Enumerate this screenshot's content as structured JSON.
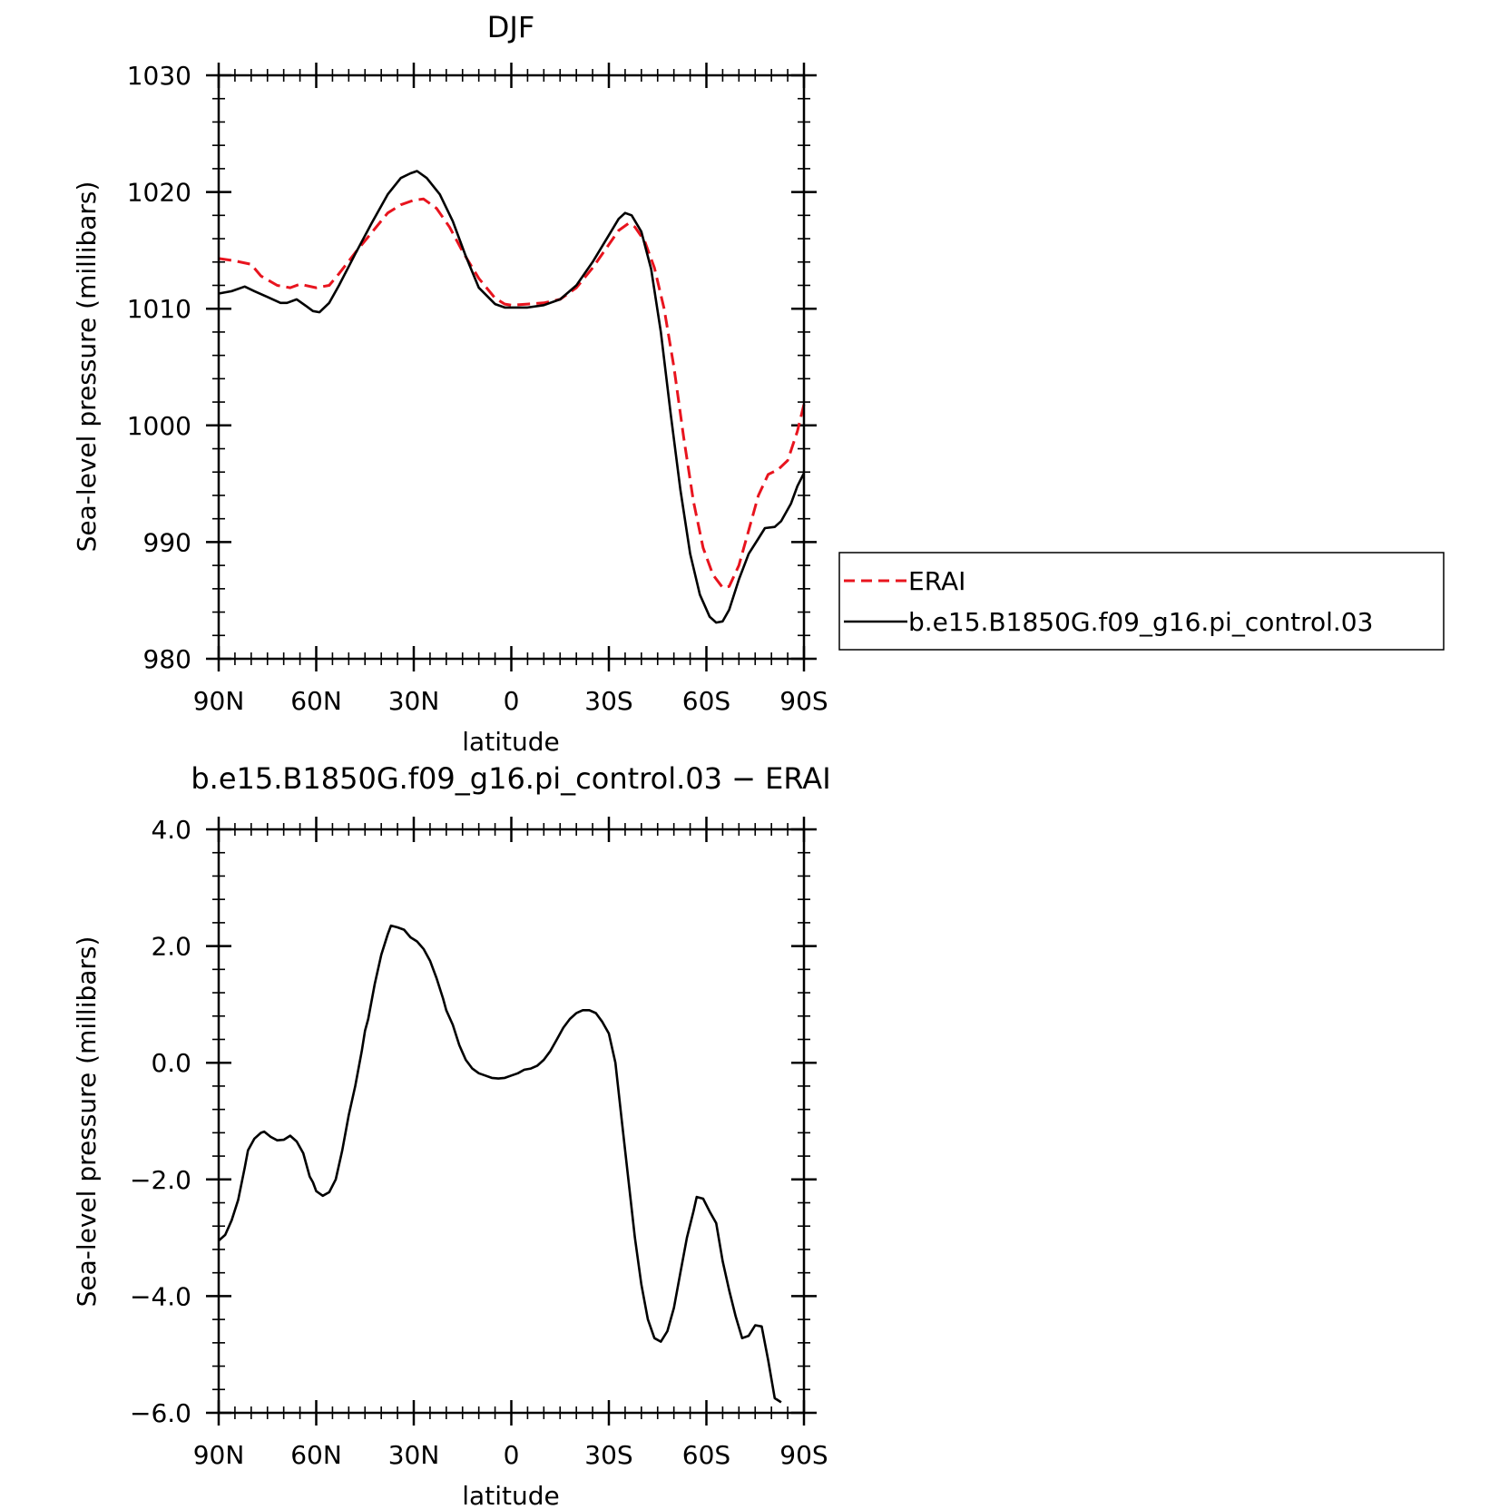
{
  "chart_data": [
    {
      "type": "line",
      "title": "DJF",
      "xlabel": "latitude",
      "ylabel": "Sea-level pressure (millibars)",
      "xlim": [
        90,
        -90
      ],
      "ylim": [
        980,
        1030
      ],
      "x_ticks": [
        90,
        60,
        30,
        0,
        -30,
        -60,
        -90
      ],
      "x_tick_labels": [
        "90N",
        "60N",
        "30N",
        "0",
        "30S",
        "60S",
        "90S"
      ],
      "y_ticks": [
        980,
        990,
        1000,
        1010,
        1020,
        1030
      ],
      "y_tick_labels": [
        "980",
        "990",
        "1000",
        "1010",
        "1020",
        "1030"
      ],
      "legend": "right",
      "series": [
        {
          "name": "ERAI",
          "color": "#e8141e",
          "dash": "dashed",
          "points": [
            [
              90,
              1014.3
            ],
            [
              85,
              1014.1
            ],
            [
              80,
              1013.8
            ],
            [
              77,
              1012.8
            ],
            [
              72,
              1012.0
            ],
            [
              68,
              1011.8
            ],
            [
              65,
              1012.1
            ],
            [
              60,
              1011.8
            ],
            [
              56,
              1012.0
            ],
            [
              53,
              1013.0
            ],
            [
              48,
              1014.8
            ],
            [
              43,
              1016.5
            ],
            [
              38,
              1018.2
            ],
            [
              34,
              1018.9
            ],
            [
              30,
              1019.3
            ],
            [
              27,
              1019.4
            ],
            [
              23,
              1018.6
            ],
            [
              19,
              1017.0
            ],
            [
              15,
              1014.9
            ],
            [
              10,
              1012.6
            ],
            [
              5,
              1010.9
            ],
            [
              2,
              1010.4
            ],
            [
              0,
              1010.3
            ],
            [
              -5,
              1010.4
            ],
            [
              -10,
              1010.5
            ],
            [
              -15,
              1010.8
            ],
            [
              -20,
              1011.8
            ],
            [
              -25,
              1013.5
            ],
            [
              -30,
              1015.5
            ],
            [
              -33,
              1016.7
            ],
            [
              -36,
              1017.3
            ],
            [
              -38,
              1017.0
            ],
            [
              -41,
              1015.8
            ],
            [
              -44,
              1013.5
            ],
            [
              -47,
              1010.0
            ],
            [
              -50,
              1005.0
            ],
            [
              -53,
              999.0
            ],
            [
              -56,
              993.5
            ],
            [
              -59,
              989.5
            ],
            [
              -62,
              987.2
            ],
            [
              -65,
              986.1
            ],
            [
              -67,
              986.2
            ],
            [
              -70,
              988.0
            ],
            [
              -73,
              991.0
            ],
            [
              -76,
              994.0
            ],
            [
              -79,
              995.8
            ],
            [
              -82,
              996.2
            ],
            [
              -85,
              997.0
            ],
            [
              -88,
              999.5
            ],
            [
              -90,
              1001.8
            ]
          ]
        },
        {
          "name": "b.e15.B1850G.f09_g16.pi_control.03",
          "color": "#000000",
          "dash": "solid",
          "points": [
            [
              90,
              1011.3
            ],
            [
              86,
              1011.5
            ],
            [
              82,
              1011.9
            ],
            [
              79,
              1011.5
            ],
            [
              75,
              1011.0
            ],
            [
              71,
              1010.5
            ],
            [
              69,
              1010.5
            ],
            [
              66,
              1010.8
            ],
            [
              63,
              1010.2
            ],
            [
              61,
              1009.8
            ],
            [
              59,
              1009.7
            ],
            [
              56,
              1010.5
            ],
            [
              53,
              1012.0
            ],
            [
              48,
              1014.7
            ],
            [
              43,
              1017.3
            ],
            [
              38,
              1019.8
            ],
            [
              34,
              1021.2
            ],
            [
              31,
              1021.6
            ],
            [
              29,
              1021.8
            ],
            [
              26,
              1021.2
            ],
            [
              22,
              1019.8
            ],
            [
              18,
              1017.5
            ],
            [
              14,
              1014.5
            ],
            [
              10,
              1011.8
            ],
            [
              5,
              1010.4
            ],
            [
              2,
              1010.1
            ],
            [
              0,
              1010.1
            ],
            [
              -5,
              1010.1
            ],
            [
              -10,
              1010.3
            ],
            [
              -15,
              1010.8
            ],
            [
              -20,
              1012.0
            ],
            [
              -25,
              1014.0
            ],
            [
              -30,
              1016.3
            ],
            [
              -33,
              1017.7
            ],
            [
              -35,
              1018.2
            ],
            [
              -37,
              1018.0
            ],
            [
              -40,
              1016.6
            ],
            [
              -43,
              1013.4
            ],
            [
              -46,
              1008.0
            ],
            [
              -49,
              1001.0
            ],
            [
              -52,
              994.5
            ],
            [
              -55,
              989.0
            ],
            [
              -58,
              985.5
            ],
            [
              -61,
              983.6
            ],
            [
              -63,
              983.1
            ],
            [
              -65,
              983.2
            ],
            [
              -67,
              984.2
            ],
            [
              -70,
              986.8
            ],
            [
              -73,
              989.0
            ],
            [
              -76,
              990.3
            ],
            [
              -78,
              991.2
            ],
            [
              -81,
              991.3
            ],
            [
              -83,
              991.8
            ],
            [
              -86,
              993.3
            ],
            [
              -88,
              994.8
            ],
            [
              -90,
              995.9
            ]
          ]
        }
      ]
    },
    {
      "type": "line",
      "title": "b.e15.B1850G.f09_g16.pi_control.03 − ERAI",
      "xlabel": "latitude",
      "ylabel": "Sea-level pressure (millibars)",
      "xlim": [
        90,
        -90
      ],
      "ylim": [
        -6.0,
        4.0
      ],
      "x_ticks": [
        90,
        60,
        30,
        0,
        -30,
        -60,
        -90
      ],
      "x_tick_labels": [
        "90N",
        "60N",
        "30N",
        "0",
        "30S",
        "60S",
        "90S"
      ],
      "y_ticks": [
        -6.0,
        -4.0,
        -2.0,
        0.0,
        2.0,
        4.0
      ],
      "y_tick_labels": [
        "−6.0",
        "−4.0",
        "−2.0",
        "0.0",
        "2.0",
        "4.0"
      ],
      "series": [
        {
          "color": "#000000",
          "dash": "solid",
          "points": [
            [
              90,
              -3.05
            ],
            [
              88,
              -2.95
            ],
            [
              86,
              -2.7
            ],
            [
              84,
              -2.35
            ],
            [
              82,
              -1.8
            ],
            [
              81,
              -1.5
            ],
            [
              79,
              -1.3
            ],
            [
              77,
              -1.2
            ],
            [
              76,
              -1.18
            ],
            [
              74,
              -1.27
            ],
            [
              72,
              -1.33
            ],
            [
              70,
              -1.32
            ],
            [
              68,
              -1.25
            ],
            [
              66,
              -1.35
            ],
            [
              64,
              -1.55
            ],
            [
              62,
              -1.95
            ],
            [
              61,
              -2.05
            ],
            [
              60,
              -2.2
            ],
            [
              58,
              -2.28
            ],
            [
              56,
              -2.22
            ],
            [
              54,
              -2.0
            ],
            [
              52,
              -1.5
            ],
            [
              50,
              -0.9
            ],
            [
              48,
              -0.4
            ],
            [
              46,
              0.2
            ],
            [
              45,
              0.55
            ],
            [
              44,
              0.75
            ],
            [
              42,
              1.35
            ],
            [
              40,
              1.85
            ],
            [
              38,
              2.2
            ],
            [
              37,
              2.35
            ],
            [
              35,
              2.32
            ],
            [
              33,
              2.28
            ],
            [
              31,
              2.15
            ],
            [
              29,
              2.08
            ],
            [
              27,
              1.95
            ],
            [
              25,
              1.75
            ],
            [
              23,
              1.45
            ],
            [
              21,
              1.1
            ],
            [
              20,
              0.9
            ],
            [
              18,
              0.65
            ],
            [
              16,
              0.3
            ],
            [
              14,
              0.05
            ],
            [
              12,
              -0.1
            ],
            [
              10,
              -0.18
            ],
            [
              8,
              -0.22
            ],
            [
              6,
              -0.26
            ],
            [
              4,
              -0.27
            ],
            [
              2,
              -0.26
            ],
            [
              0,
              -0.22
            ],
            [
              -2,
              -0.18
            ],
            [
              -4,
              -0.12
            ],
            [
              -6,
              -0.1
            ],
            [
              -8,
              -0.05
            ],
            [
              -10,
              0.05
            ],
            [
              -12,
              0.2
            ],
            [
              -14,
              0.4
            ],
            [
              -16,
              0.6
            ],
            [
              -18,
              0.75
            ],
            [
              -20,
              0.85
            ],
            [
              -22,
              0.9
            ],
            [
              -24,
              0.9
            ],
            [
              -26,
              0.85
            ],
            [
              -28,
              0.7
            ],
            [
              -30,
              0.5
            ],
            [
              -32,
              0.0
            ],
            [
              -34,
              -1.0
            ],
            [
              -36,
              -2.0
            ],
            [
              -38,
              -3.0
            ],
            [
              -40,
              -3.8
            ],
            [
              -42,
              -4.4
            ],
            [
              -44,
              -4.72
            ],
            [
              -46,
              -4.78
            ],
            [
              -48,
              -4.6
            ],
            [
              -50,
              -4.2
            ],
            [
              -52,
              -3.6
            ],
            [
              -54,
              -3.0
            ],
            [
              -56,
              -2.55
            ],
            [
              -57,
              -2.3
            ],
            [
              -59,
              -2.33
            ],
            [
              -61,
              -2.55
            ],
            [
              -63,
              -2.75
            ],
            [
              -65,
              -3.4
            ],
            [
              -67,
              -3.9
            ],
            [
              -69,
              -4.35
            ],
            [
              -71,
              -4.72
            ],
            [
              -73,
              -4.68
            ],
            [
              -75,
              -4.5
            ],
            [
              -77,
              -4.52
            ],
            [
              -79,
              -5.1
            ],
            [
              -81,
              -5.75
            ],
            [
              -83,
              -5.82
            ]
          ]
        }
      ]
    }
  ]
}
